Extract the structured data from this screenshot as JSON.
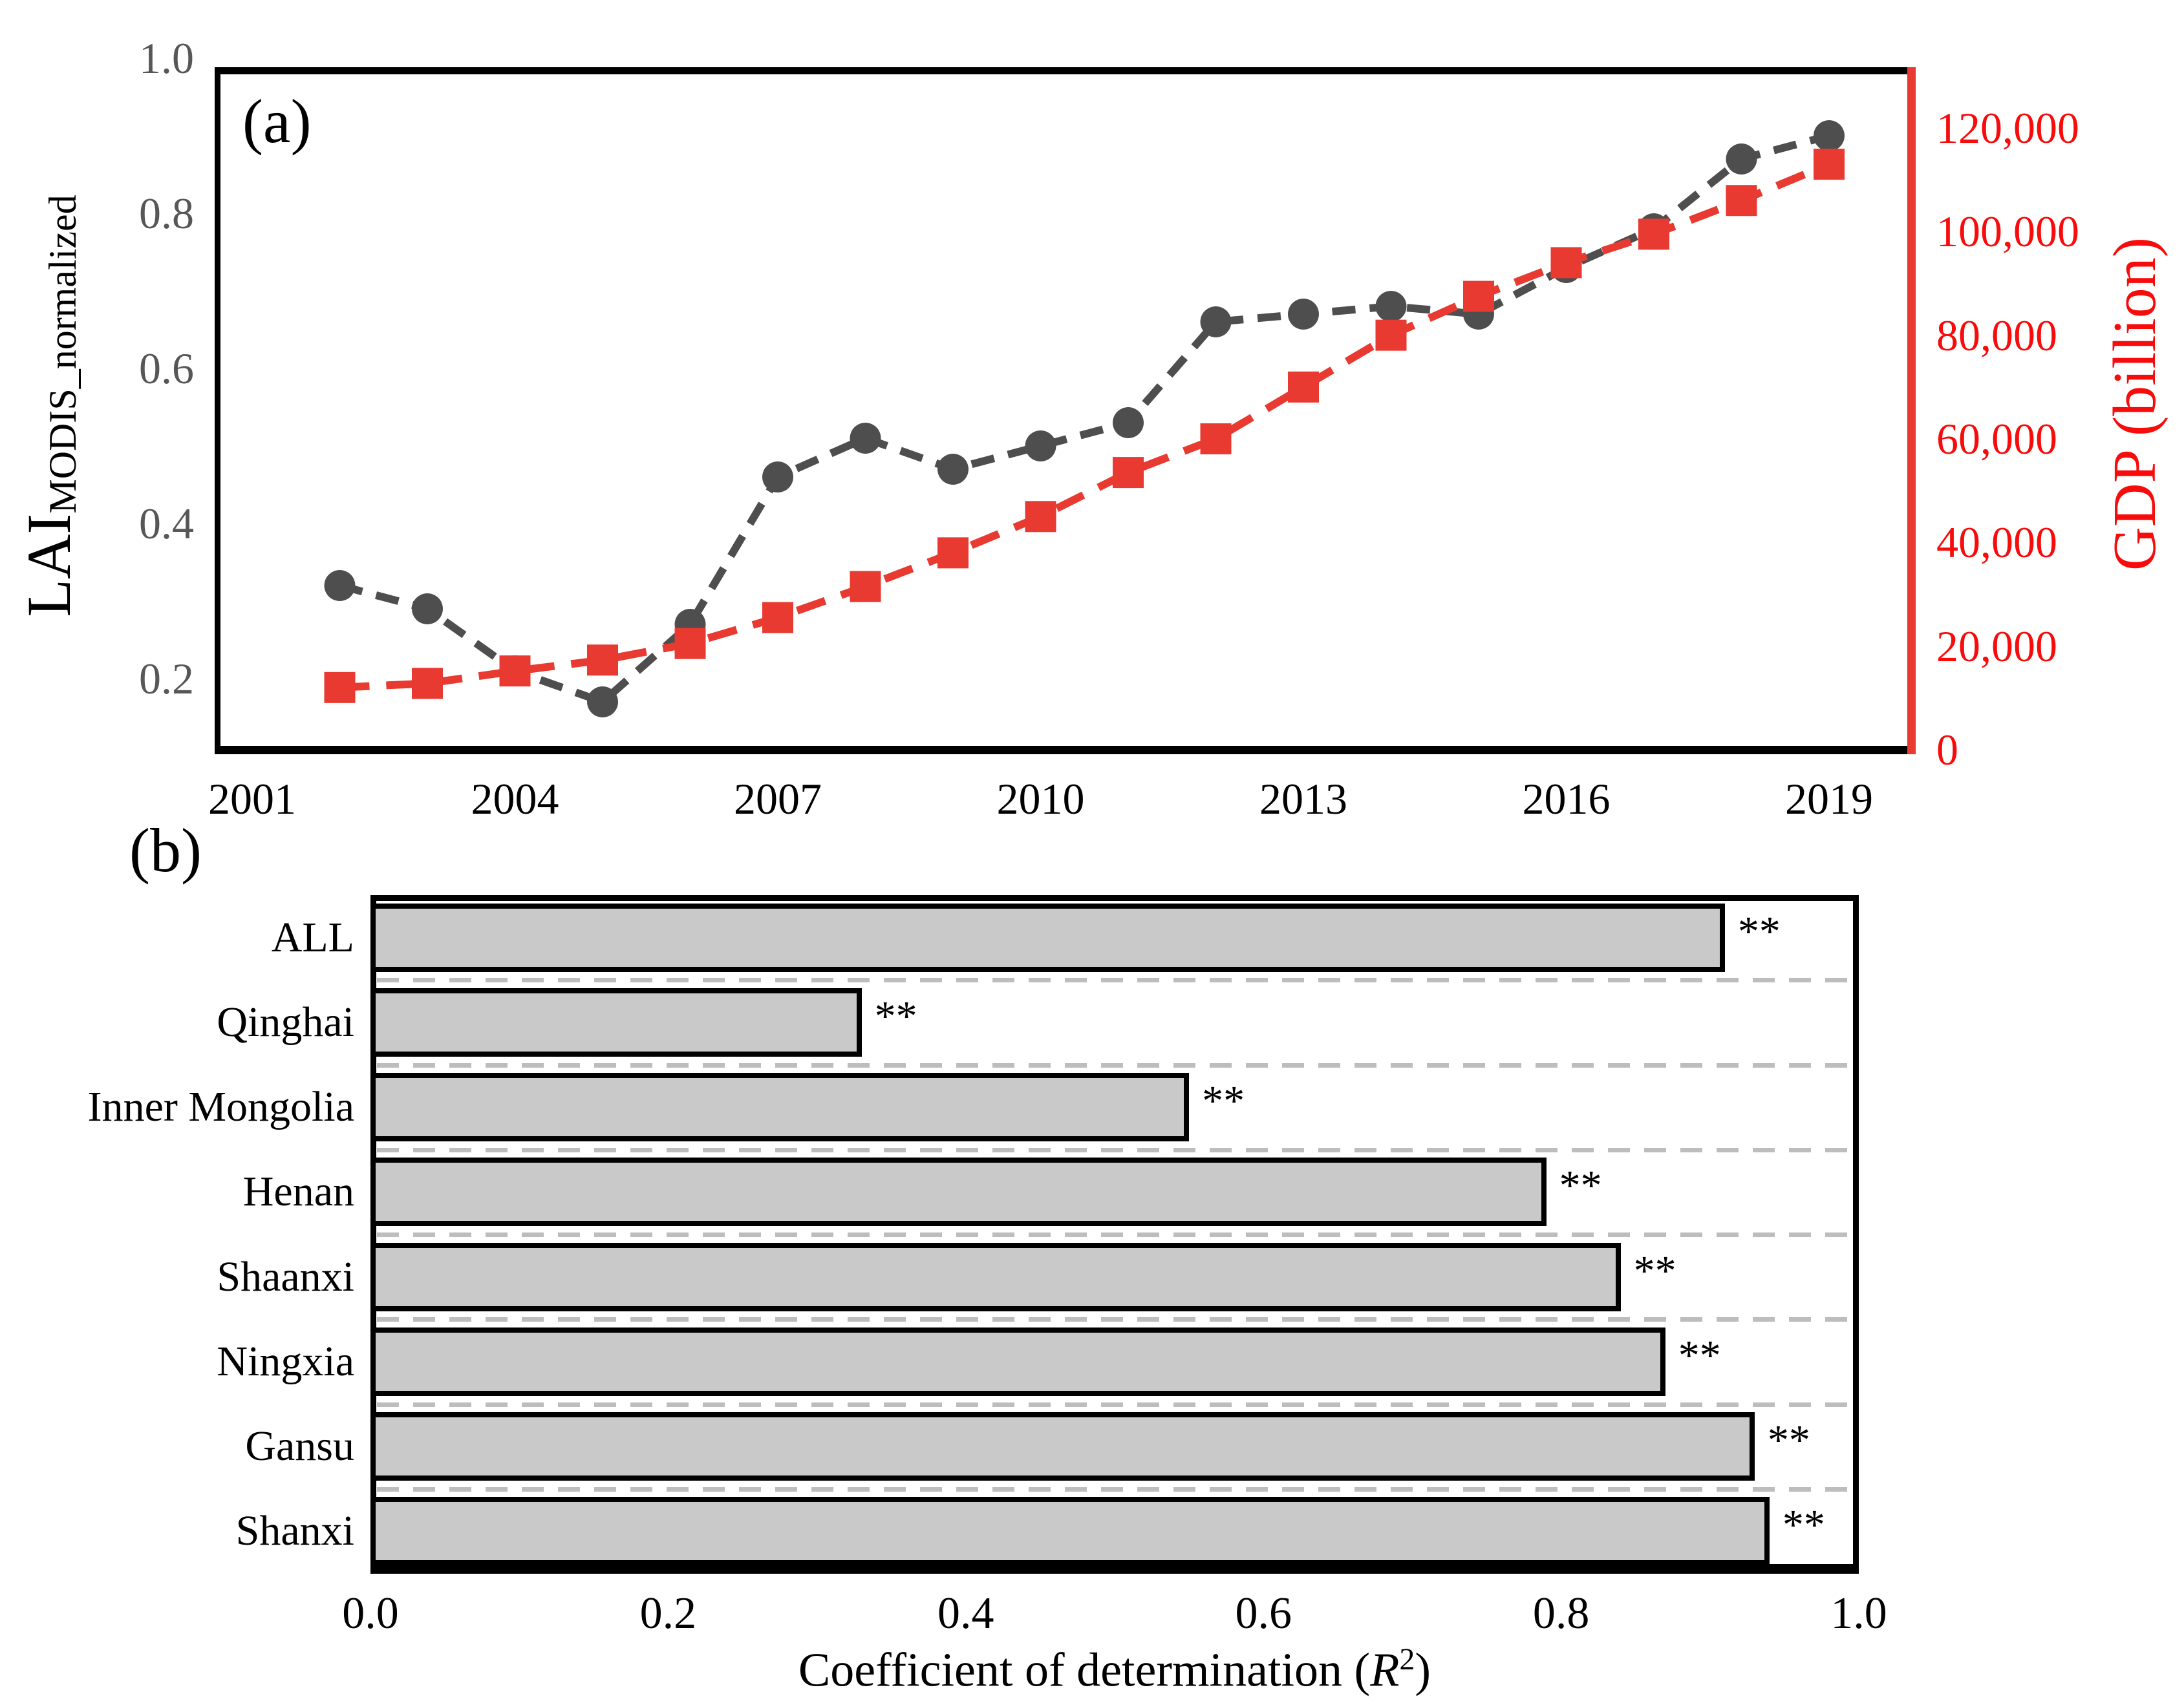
{
  "labels": {
    "panel_a": "(a)",
    "panel_b": "(b)",
    "lai_main": "LAI",
    "lai_sub": "MODIS_normalized",
    "gdp_axis": "GDP (billion)",
    "b_xlabel_prefix": "Coefficient of determination (",
    "b_xlabel_r": "R",
    "b_xlabel_sup": "2",
    "b_xlabel_suffix": ")"
  },
  "colors": {
    "lai_series": "#4e4e4e",
    "gdp_series": "#e83a30",
    "right_axis_text": "#f80b0b",
    "left_tick_text": "#575757",
    "bar_fill": "#c9c9c9",
    "separator": "#bdbdbd"
  },
  "chart_data": [
    {
      "type": "line",
      "panel": "(a)",
      "x": [
        2002,
        2003,
        2004,
        2005,
        2006,
        2007,
        2008,
        2009,
        2010,
        2011,
        2012,
        2013,
        2014,
        2015,
        2016,
        2017,
        2018,
        2019
      ],
      "x_tick_labels": [
        "2001",
        "2004",
        "2007",
        "2010",
        "2013",
        "2016",
        "2019"
      ],
      "x_tick_values": [
        2001,
        2004,
        2007,
        2010,
        2013,
        2016,
        2019
      ],
      "xlim": [
        2000.6,
        2020.2
      ],
      "series": [
        {
          "name": "LAI_MODIS_normalized",
          "axis": "left",
          "marker": "circle",
          "values": [
            0.32,
            0.29,
            0.21,
            0.17,
            0.27,
            0.46,
            0.51,
            0.47,
            0.5,
            0.53,
            0.66,
            0.67,
            0.68,
            0.67,
            0.73,
            0.78,
            0.87,
            0.9
          ]
        },
        {
          "name": "GDP",
          "axis": "right",
          "marker": "square",
          "values": [
            12000,
            12800,
            15200,
            17300,
            20500,
            25500,
            31500,
            38000,
            45000,
            53500,
            60000,
            70000,
            80000,
            87500,
            94000,
            99500,
            106000,
            113000
          ]
        }
      ],
      "y_left": {
        "label": "LAI_MODIS_normalized",
        "tick_labels": [
          "1.0",
          "0.8",
          "0.6",
          "0.4",
          "0.2"
        ],
        "tick_values": [
          1.0,
          0.8,
          0.6,
          0.4,
          0.2
        ],
        "ylim": [
          0.11,
          1.0
        ]
      },
      "y_right": {
        "label": "GDP (billion)",
        "tick_labels": [
          "120,000",
          "100,000",
          "80,000",
          "60,000",
          "40,000",
          "20,000",
          "0"
        ],
        "tick_values": [
          120000,
          100000,
          80000,
          60000,
          40000,
          20000,
          0
        ],
        "ylim": [
          0,
          120000
        ]
      },
      "grid": false,
      "legend": "none"
    },
    {
      "type": "bar",
      "orientation": "horizontal",
      "panel": "(b)",
      "categories": [
        "ALL",
        "Qinghai",
        "Inner Mongolia",
        "Henan",
        "Shaanxi",
        "Ningxia",
        "Gansu",
        "Shanxi"
      ],
      "values": [
        0.91,
        0.33,
        0.55,
        0.79,
        0.84,
        0.87,
        0.93,
        0.94
      ],
      "significance": [
        "**",
        "**",
        "**",
        "**",
        "**",
        "**",
        "**",
        "**"
      ],
      "xlabel": "Coefficient of determination (R²)",
      "x_tick_labels": [
        "0.0",
        "0.2",
        "0.4",
        "0.6",
        "0.8",
        "1.0"
      ],
      "x_tick_values": [
        0.0,
        0.2,
        0.4,
        0.6,
        0.8,
        1.0
      ],
      "xlim": [
        0,
        1.0
      ],
      "grid": false,
      "legend": "none"
    }
  ]
}
